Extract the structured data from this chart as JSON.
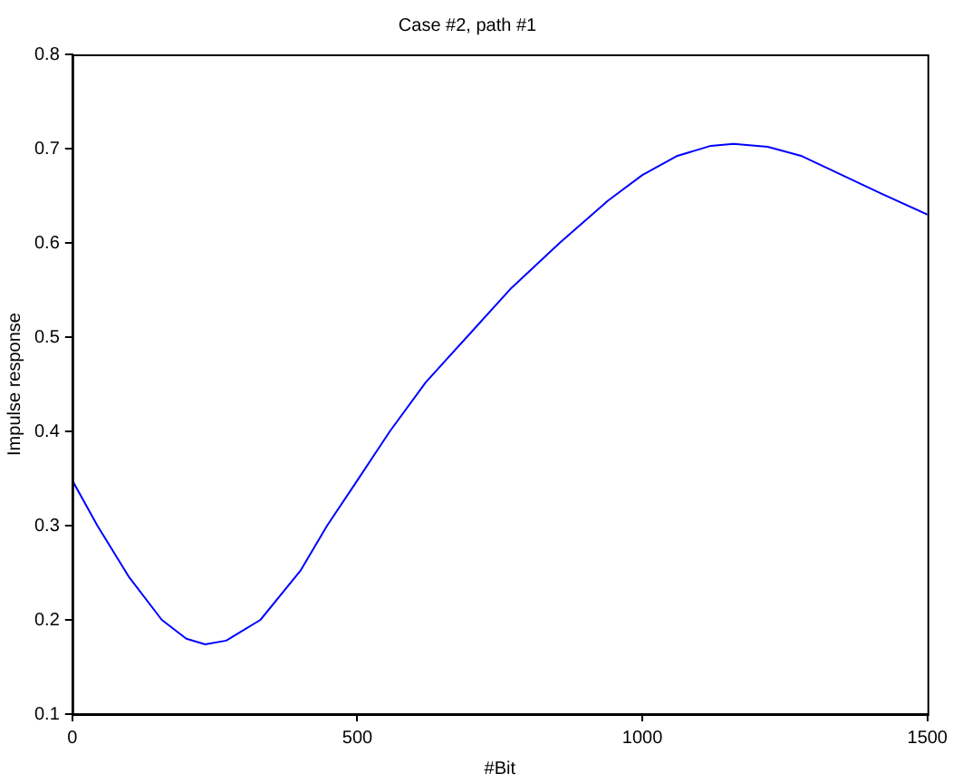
{
  "chart_data": {
    "type": "line",
    "title": "Case #2, path #1",
    "xlabel": "#Bit",
    "ylabel": "Impulse response",
    "x": [
      0,
      44,
      100,
      157,
      200,
      233,
      270,
      330,
      400,
      447,
      500,
      557,
      620,
      692,
      770,
      855,
      940,
      1000,
      1060,
      1120,
      1160,
      1220,
      1280,
      1350,
      1420,
      1500
    ],
    "series": [
      {
        "color": "#0000ff",
        "values": [
          0.348,
          0.3,
          0.245,
          0.2,
          0.18,
          0.174,
          0.178,
          0.2,
          0.252,
          0.3,
          0.348,
          0.4,
          0.452,
          0.5,
          0.552,
          0.6,
          0.645,
          0.672,
          0.692,
          0.703,
          0.705,
          0.702,
          0.692,
          0.672,
          0.652,
          0.63
        ]
      }
    ],
    "xlim": [
      0,
      1500
    ],
    "xticks": [
      0,
      500,
      1000,
      1500
    ],
    "ylim": [
      0.1,
      0.8
    ],
    "yticks": [
      0.1,
      0.2,
      0.3,
      0.4,
      0.5,
      0.6,
      0.7,
      0.8
    ],
    "grid": false,
    "legend": false,
    "marker": "none",
    "line_style": "solid"
  }
}
